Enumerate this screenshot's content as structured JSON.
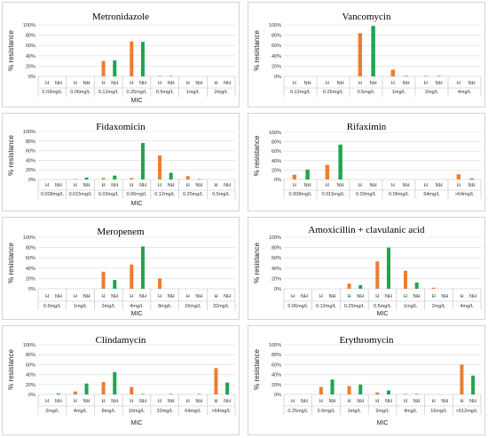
{
  "colors": {
    "H": "#ED7D31",
    "NH": "#1FA54F",
    "grid": "#d9d9d9",
    "axis": "#bfbfbf"
  },
  "chart_data": [
    {
      "type": "bar",
      "title": "Metronidazole",
      "ylabel": "% resistance",
      "xlabel": "MIC",
      "ylim": [
        0,
        100
      ],
      "yticks": [
        "0%",
        "20%",
        "40%",
        "60%",
        "80%",
        "100%"
      ],
      "categories": [
        "0.03mg/L",
        "0.06mg/L",
        "0.12mg/L",
        "0.25mg/L",
        "0.5mg/L",
        "1mg/L",
        "2mg/L"
      ],
      "bar_labels": [
        "H",
        "NH"
      ],
      "series": [
        {
          "values": [
            0,
            0,
            30,
            68,
            1,
            0,
            0
          ]
        },
        {
          "values": [
            0,
            0,
            31,
            67,
            1,
            0,
            0
          ]
        }
      ]
    },
    {
      "type": "bar",
      "title": "Vancomycin",
      "ylabel": "% resistance",
      "xlabel": "",
      "ylim": [
        0,
        100
      ],
      "yticks": [
        "0%",
        "20%",
        "40%",
        "60%",
        "80%",
        "100%"
      ],
      "categories": [
        "0.12mg/L",
        "0.25mg/L",
        "0.5mg/L",
        "1mg/L",
        "2mg/L",
        "4mg/L"
      ],
      "bar_labels": [
        "H",
        "NH"
      ],
      "series": [
        {
          "values": [
            0,
            0,
            84,
            13,
            1,
            0
          ]
        },
        {
          "values": [
            0,
            0,
            98,
            1,
            1,
            0
          ]
        }
      ]
    },
    {
      "type": "bar",
      "title": "Fidaxomicin",
      "ylabel": "% resistance",
      "xlabel": "MIC",
      "ylim": [
        0,
        100
      ],
      "yticks": [
        "0%",
        "20%",
        "40%",
        "60%",
        "80%",
        "100%"
      ],
      "categories": [
        "0.008mg/L",
        "0.015mg/L",
        "0.03mg/L",
        "0.06mg/L",
        "0.12mg/L",
        "0.25mg/L",
        "0.5mg/L"
      ],
      "bar_labels": [
        "H",
        "NH"
      ],
      "series": [
        {
          "values": [
            0,
            1,
            3,
            3,
            50,
            7,
            0
          ]
        },
        {
          "values": [
            0,
            4,
            8,
            76,
            14,
            1,
            0
          ]
        }
      ]
    },
    {
      "type": "bar",
      "title": "Rifaximin",
      "ylabel": "% resistance",
      "xlabel": "",
      "ylim": [
        0,
        100
      ],
      "yticks": [
        "0%",
        "20%",
        "40%",
        "60%",
        "80%",
        "100%"
      ],
      "categories": [
        "0.008mg/L",
        "0.015mg/L",
        "0.03mg/L",
        "0.06mg/L",
        "64mg/L",
        ">64mg/L"
      ],
      "bar_labels": [
        "H",
        "NH"
      ],
      "series": [
        {
          "values": [
            10,
            31,
            0,
            0,
            0,
            11
          ]
        },
        {
          "values": [
            21,
            74,
            0,
            0,
            0,
            2
          ]
        }
      ]
    },
    {
      "type": "bar",
      "title": "Meropenem",
      "ylabel": "% resistance",
      "xlabel": "MIC",
      "ylim": [
        0,
        100
      ],
      "yticks": [
        "0%",
        "20%",
        "40%",
        "60%",
        "80%",
        "100%"
      ],
      "categories": [
        "0.5mg/L",
        "1mg/L",
        "2mg/L",
        "4mg/L",
        "8mg/L",
        "16mg/L",
        "32mg/L"
      ],
      "bar_labels": [
        "H",
        "NH"
      ],
      "series": [
        {
          "values": [
            0,
            0,
            33,
            47,
            20,
            0,
            0
          ]
        },
        {
          "values": [
            0,
            0,
            17,
            82,
            0,
            0,
            0
          ]
        }
      ]
    },
    {
      "type": "bar",
      "title": "Amoxicillin + clavulanic acid",
      "ylabel": "% resistance",
      "xlabel": "MIC",
      "ylim": [
        0,
        100
      ],
      "yticks": [
        "0%",
        "20%",
        "40%",
        "60%",
        "80%",
        "100%"
      ],
      "categories": [
        "0.06mg/L",
        "0.12mg/L",
        "0.25mg/L",
        "0.5mg/L",
        "1mg/L",
        "2mg/L",
        "4mg/L"
      ],
      "bar_labels": [
        "H",
        "NH"
      ],
      "series": [
        {
          "values": [
            0,
            0,
            10,
            53,
            35,
            2,
            0
          ]
        },
        {
          "values": [
            0,
            0,
            7,
            80,
            12,
            0,
            0
          ]
        }
      ]
    },
    {
      "type": "bar",
      "title": "Clindamycin",
      "ylabel": "% resistance",
      "xlabel": "MIC",
      "ylim": [
        0,
        100
      ],
      "yticks": [
        "0%",
        "20%",
        "40%",
        "60%",
        "80%",
        "100%"
      ],
      "categories": [
        "2mg/L",
        "4mg/L",
        "8mg/L",
        "16mg/L",
        "32mg/L",
        "64mg/L",
        ">64mg/L"
      ],
      "bar_labels": [
        "H",
        "NH"
      ],
      "series": [
        {
          "values": [
            0,
            6,
            25,
            15,
            0,
            0,
            53
          ]
        },
        {
          "values": [
            2,
            22,
            45,
            1,
            1,
            1,
            24
          ]
        }
      ]
    },
    {
      "type": "bar",
      "title": "Erythromycin",
      "ylabel": "% resistance",
      "xlabel": "MIC",
      "ylim": [
        0,
        100
      ],
      "yticks": [
        "0%",
        "20%",
        "40%",
        "60%",
        "80%",
        "100%"
      ],
      "categories": [
        "0.25mg/L",
        "0.5mg/L",
        "1mg/L",
        "2mg/L",
        "4mg/L",
        "16mg/L",
        ">512mg/L"
      ],
      "bar_labels": [
        "H",
        "NH"
      ],
      "series": [
        {
          "values": [
            0,
            15,
            17,
            4,
            1,
            0,
            60
          ]
        },
        {
          "values": [
            0,
            30,
            20,
            8,
            1,
            0,
            38
          ]
        }
      ]
    }
  ]
}
